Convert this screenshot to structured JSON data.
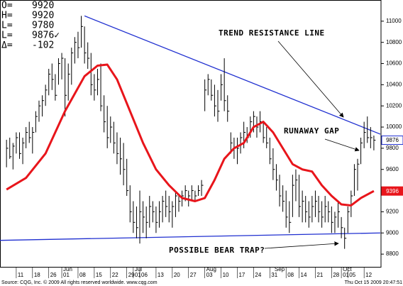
{
  "chart_data": {
    "type": "ohlc",
    "quote": [
      {
        "label": "O=",
        "value": 9920
      },
      {
        "label": "H=",
        "value": 9920
      },
      {
        "label": "L=",
        "value": 9780
      },
      {
        "label": "L=",
        "value": "9876✓"
      },
      {
        "label": "Δ=",
        "value": -102
      }
    ],
    "color": "#000000",
    "high": [
      9880,
      9900,
      9850,
      9950,
      9950,
      9900,
      10000,
      10050,
      10000,
      10150,
      10250,
      10300,
      10400,
      10550,
      10600,
      10500,
      10650,
      10700,
      10650,
      10600,
      10750,
      10850,
      10900,
      11050,
      10950,
      10800,
      10700,
      10500,
      10550,
      10600,
      10300,
      10200,
      10100,
      10050,
      9950,
      9900,
      9850,
      9700,
      9450,
      9300,
      9250,
      9400,
      9300,
      9250,
      9350,
      9300,
      9250,
      9300,
      9350,
      9400,
      9350,
      9300,
      9400,
      9350,
      9400,
      9450,
      9400,
      9450,
      9400,
      9450,
      9500,
      10450,
      10500,
      10450,
      10400,
      10350,
      10500,
      10650,
      10300,
      9950,
      9900,
      9900,
      9950,
      10050,
      10000,
      10100,
      10150,
      10100,
      10150,
      10050,
      10000,
      9900,
      9800,
      9650,
      9550,
      9450,
      9400,
      9300,
      9550,
      9600,
      9550,
      9400,
      9350,
      9300,
      9350,
      9400,
      9350,
      9300,
      9350,
      9300,
      9250,
      9200,
      9300,
      9150,
      9050,
      9250,
      9400,
      9650,
      9700,
      9900,
      10050,
      10100,
      10000,
      9920
    ],
    "low": [
      9620,
      9700,
      9600,
      9750,
      9700,
      9650,
      9800,
      9850,
      9750,
      9950,
      10050,
      10100,
      10200,
      10300,
      10350,
      10250,
      10400,
      10450,
      10100,
      10250,
      10400,
      10600,
      10650,
      10750,
      10600,
      10550,
      10300,
      10250,
      10300,
      10150,
      9950,
      9800,
      9850,
      9750,
      9650,
      9550,
      9450,
      9350,
      9100,
      9000,
      8950,
      8900,
      9000,
      8950,
      9050,
      9100,
      9000,
      9050,
      9100,
      9150,
      9100,
      9050,
      9150,
      9200,
      9250,
      9300,
      9250,
      9300,
      9300,
      9350,
      9350,
      10150,
      10300,
      10250,
      10100,
      10050,
      10250,
      10150,
      10050,
      9750,
      9700,
      9650,
      9750,
      9800,
      9850,
      9900,
      9950,
      9900,
      9950,
      9850,
      9800,
      9650,
      9500,
      9400,
      9250,
      9200,
      9050,
      9000,
      9150,
      9300,
      9150,
      9100,
      9100,
      9050,
      9100,
      9150,
      9100,
      9050,
      9100,
      9100,
      9000,
      9000,
      9050,
      8950,
      8850,
      9000,
      9150,
      9350,
      9400,
      9650,
      9800,
      9850,
      9800,
      9780
    ],
    "close": [
      9800,
      9720,
      9820,
      9900,
      9750,
      9850,
      9950,
      9900,
      9950,
      10100,
      10200,
      10250,
      10350,
      10500,
      10450,
      10300,
      10600,
      10650,
      10300,
      10500,
      10700,
      10800,
      10750,
      10950,
      10700,
      10650,
      10400,
      10350,
      10450,
      10200,
      10050,
      9900,
      10000,
      9850,
      9750,
      9700,
      9600,
      9400,
      9200,
      9100,
      9050,
      9200,
      9150,
      9100,
      9250,
      9200,
      9100,
      9200,
      9300,
      9250,
      9200,
      9250,
      9350,
      9300,
      9350,
      9400,
      9350,
      9400,
      9350,
      9400,
      9450,
      10350,
      10450,
      10300,
      10200,
      10150,
      10400,
      10250,
      10150,
      9850,
      9800,
      9800,
      9900,
      9950,
      9900,
      10050,
      10100,
      10000,
      10050,
      9900,
      9850,
      9700,
      9600,
      9500,
      9350,
      9300,
      9150,
      9100,
      9450,
      9500,
      9250,
      9300,
      9200,
      9150,
      9250,
      9300,
      9200,
      9150,
      9250,
      9200,
      9100,
      9150,
      9200,
      9050,
      8950,
      9200,
      9350,
      9600,
      9650,
      9850,
      9950,
      9900,
      9900,
      9876
    ],
    "average": {
      "color": "#e8151b",
      "x": [
        0,
        6,
        12,
        18,
        24,
        28,
        31,
        34,
        38,
        42,
        46,
        50,
        54,
        58,
        61,
        64,
        67,
        70,
        73,
        76,
        79,
        82,
        85,
        88,
        91,
        94,
        97,
        100,
        103,
        106,
        109,
        113
      ],
      "values": [
        9410,
        9520,
        9750,
        10150,
        10480,
        10580,
        10590,
        10450,
        10150,
        9850,
        9600,
        9450,
        9330,
        9300,
        9330,
        9500,
        9700,
        9800,
        9850,
        10000,
        10050,
        9950,
        9800,
        9650,
        9600,
        9580,
        9450,
        9350,
        9270,
        9260,
        9330,
        9396
      ]
    },
    "trend_lines": [
      {
        "color": "#1f2fd0",
        "x": [
          24,
          115
        ],
        "values": [
          11050,
          9933
        ]
      },
      {
        "color": "#1f2fd0",
        "x": [
          -2,
          115
        ],
        "values": [
          8930,
          9000
        ]
      }
    ],
    "ylim": [
      8680,
      11200
    ],
    "yticks": [
      8800,
      9000,
      9200,
      9400,
      9600,
      9800,
      10000,
      10200,
      10400,
      10600,
      10800,
      11000
    ],
    "xlim": [
      -2,
      115.2
    ],
    "xticks": [
      {
        "value": 3,
        "label": "11"
      },
      {
        "value": 8,
        "label": "18"
      },
      {
        "value": 13,
        "label": "26"
      },
      {
        "value": 17,
        "label": "01"
      },
      {
        "value": 22,
        "label": "08"
      },
      {
        "value": 27,
        "label": "15"
      },
      {
        "value": 32,
        "label": "22"
      },
      {
        "value": 37,
        "label": "29"
      },
      {
        "value": 39,
        "label": "01"
      },
      {
        "value": 41,
        "label": "06"
      },
      {
        "value": 46,
        "label": "13"
      },
      {
        "value": 51,
        "label": "20"
      },
      {
        "value": 56,
        "label": "27"
      },
      {
        "value": 61,
        "label": "03"
      },
      {
        "value": 66,
        "label": "10"
      },
      {
        "value": 71,
        "label": "17"
      },
      {
        "value": 76,
        "label": "24"
      },
      {
        "value": 81,
        "label": "31"
      },
      {
        "value": 86,
        "label": "08"
      },
      {
        "value": 90,
        "label": "14"
      },
      {
        "value": 95,
        "label": "21"
      },
      {
        "value": 100,
        "label": "28"
      },
      {
        "value": 103,
        "label": "01"
      },
      {
        "value": 105,
        "label": "05"
      },
      {
        "value": 110,
        "label": "12"
      }
    ],
    "months": [
      {
        "value": 17,
        "label": "Jun"
      },
      {
        "value": 39,
        "label": "Jul"
      },
      {
        "value": 61,
        "label": "Aug"
      },
      {
        "value": 82,
        "label": "Sep"
      },
      {
        "value": 103,
        "label": "Oct"
      }
    ],
    "annotations": [
      "TREND RESISTANCE LINE",
      "RUNAWAY GAP",
      "POSSIBLE BEAR TRAP?"
    ],
    "source": "Source: CQG, Inc. © 2009 All rights reserved worldwide. www.cqg.com",
    "timestamp": "Thu Oct 15 2009 20:47:51"
  }
}
